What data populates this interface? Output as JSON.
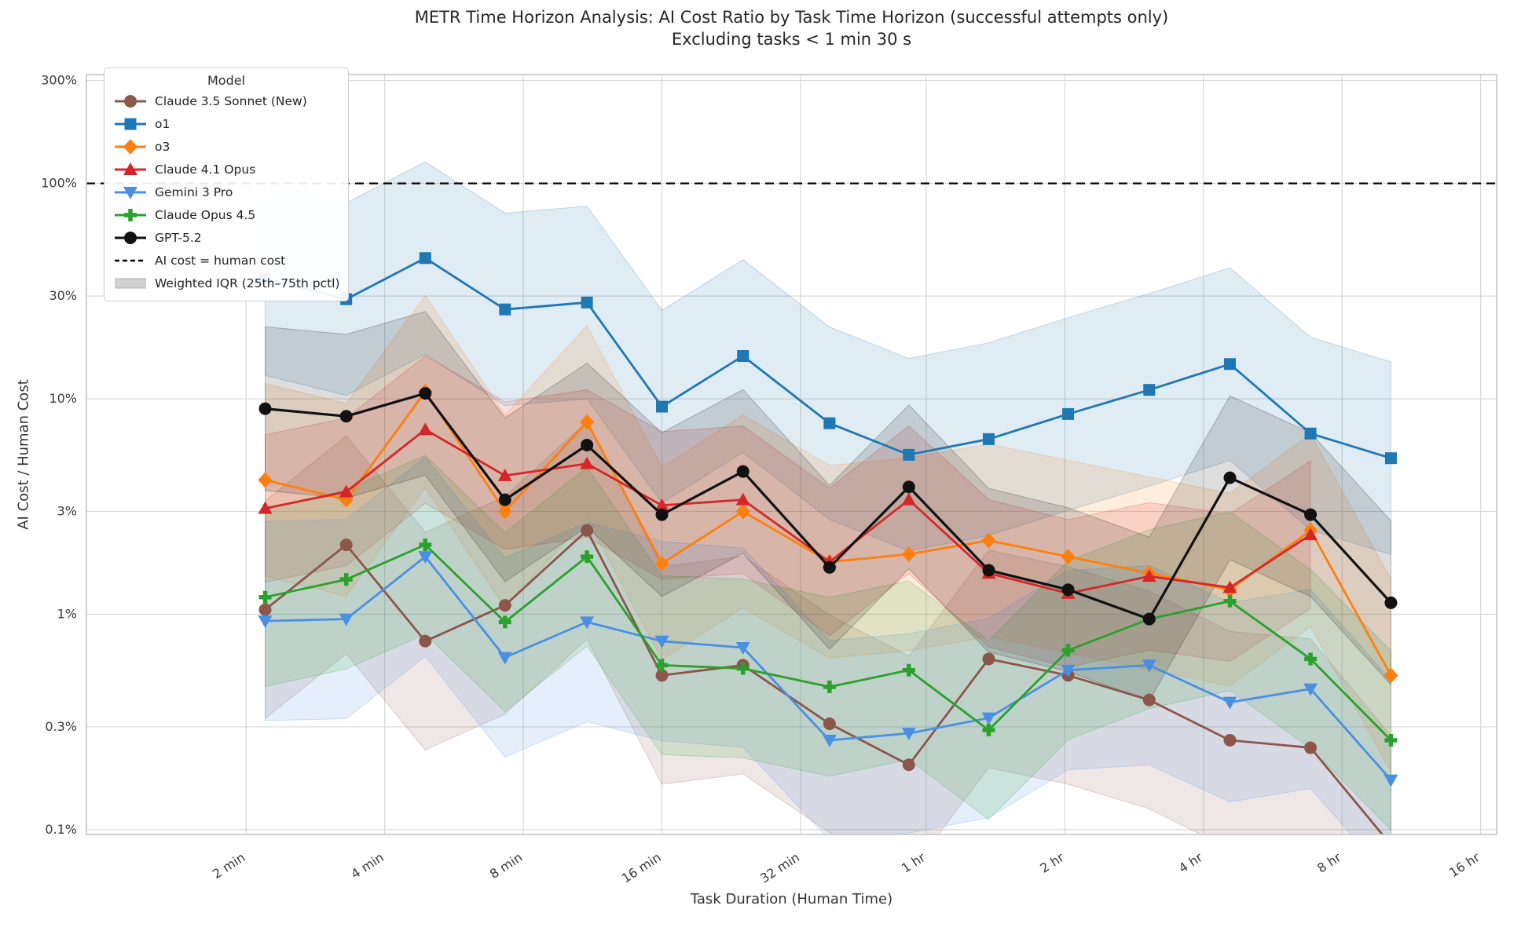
{
  "figure": {
    "title": "METR Time Horizon Analysis: AI Cost Ratio by Task Time Horizon (successful attempts only)",
    "subtitle": "Excluding tasks < 1 min 30 s",
    "xlabel": "Task Duration (Human Time)",
    "ylabel": "AI Cost / Human Cost"
  },
  "chart_data": {
    "type": "line",
    "title": "METR Time Horizon Analysis: AI Cost Ratio by Task Time Horizon (successful attempts only)",
    "subtitle": "Excluding tasks < 1 min 30 s",
    "xlabel": "Task Duration (Human Time)",
    "ylabel": "AI Cost / Human Cost",
    "x_scale": "log2",
    "y_scale": "log10",
    "grid": true,
    "xlim_minutes": [
      0.9,
      1040
    ],
    "ylim_percent": [
      0.095,
      320
    ],
    "x_ticks": [
      {
        "value": 2,
        "label": "2 min"
      },
      {
        "value": 4,
        "label": "4 min"
      },
      {
        "value": 8,
        "label": "8 min"
      },
      {
        "value": 16,
        "label": "16 min"
      },
      {
        "value": 32,
        "label": "32 min"
      },
      {
        "value": 60,
        "label": "1 hr"
      },
      {
        "value": 120,
        "label": "2 hr"
      },
      {
        "value": 240,
        "label": "4 hr"
      },
      {
        "value": 480,
        "label": "8 hr"
      },
      {
        "value": 960,
        "label": "16 hr"
      }
    ],
    "y_ticks": [
      {
        "value": 300,
        "label": "300%"
      },
      {
        "value": 100,
        "label": "100%"
      },
      {
        "value": 30,
        "label": "30%"
      },
      {
        "value": 10,
        "label": "10%"
      },
      {
        "value": 3,
        "label": "3%"
      },
      {
        "value": 1,
        "label": "1%"
      },
      {
        "value": 0.3,
        "label": "0.3%"
      },
      {
        "value": 0.1,
        "label": "0.1%"
      }
    ],
    "reference_line": {
      "value_percent": 100,
      "label": "AI cost = human cost",
      "style": "dashed-black"
    },
    "iqr_band_note": "Weighted IQR (25th–75th pctl)",
    "x_minutes": [
      2.2,
      3.3,
      4.9,
      7.3,
      11,
      16,
      24,
      37,
      55,
      82,
      122,
      183,
      274,
      410,
      613
    ],
    "series": [
      {
        "name": "Claude 3.5 Sonnet (New)",
        "color": "#8C564B",
        "marker": "circle",
        "values_percent": [
          1.05,
          2.1,
          0.75,
          1.1,
          2.45,
          0.52,
          0.58,
          0.31,
          0.2,
          0.62,
          0.52,
          0.4,
          0.26,
          0.24,
          0.085
        ],
        "iqr_spread_approx": 3.2
      },
      {
        "name": "o1",
        "color": "#1F77B4",
        "marker": "square",
        "values_percent": [
          36,
          29,
          45,
          26,
          28,
          9.2,
          15.8,
          7.7,
          5.5,
          6.5,
          8.5,
          11,
          14.5,
          6.9,
          5.3
        ],
        "iqr_spread_approx": 2.8
      },
      {
        "name": "o3",
        "color": "#FF7F0E",
        "marker": "diamond",
        "values_percent": [
          4.2,
          3.4,
          10.8,
          3.0,
          7.8,
          1.72,
          3.0,
          1.75,
          1.9,
          2.2,
          1.85,
          1.55,
          1.3,
          2.45,
          0.52
        ],
        "iqr_spread_approx": 2.8
      },
      {
        "name": "Claude 4.1 Opus",
        "color": "#D62728",
        "marker": "triangle-up",
        "values_percent": [
          3.1,
          3.7,
          7.2,
          4.4,
          5.0,
          3.2,
          3.4,
          1.75,
          3.4,
          1.55,
          1.25,
          1.5,
          1.33,
          2.34,
          null
        ],
        "iqr_spread_approx": 2.2
      },
      {
        "name": "Gemini 3 Pro",
        "color": "#4A90E2",
        "marker": "triangle-down",
        "values_percent": [
          0.93,
          0.95,
          1.85,
          0.63,
          0.92,
          0.75,
          0.7,
          0.26,
          0.28,
          0.33,
          0.55,
          0.58,
          0.39,
          0.45,
          0.17
        ],
        "iqr_spread_approx": 2.9
      },
      {
        "name": "Claude Opus 4.5",
        "color": "#2CA02C",
        "marker": "plus",
        "values_percent": [
          1.2,
          1.45,
          2.1,
          0.92,
          1.85,
          0.58,
          0.56,
          0.46,
          0.55,
          0.29,
          0.68,
          0.95,
          1.15,
          0.62,
          0.26
        ],
        "iqr_spread_approx": 2.6
      },
      {
        "name": "GPT-5.2",
        "color": "#111111",
        "marker": "circle",
        "values_percent": [
          9.0,
          8.3,
          10.6,
          3.4,
          6.1,
          2.9,
          4.6,
          1.65,
          3.9,
          1.6,
          1.3,
          0.95,
          4.3,
          2.9,
          1.13
        ],
        "iqr_spread_approx": 2.4
      }
    ],
    "legend": {
      "title": "Model",
      "extra_entries": [
        {
          "label": "AI cost = human cost",
          "sample": "dashed-line"
        },
        {
          "label": "Weighted IQR (25th–75th pctl)",
          "sample": "gray-band"
        }
      ],
      "position": "upper-left"
    }
  }
}
